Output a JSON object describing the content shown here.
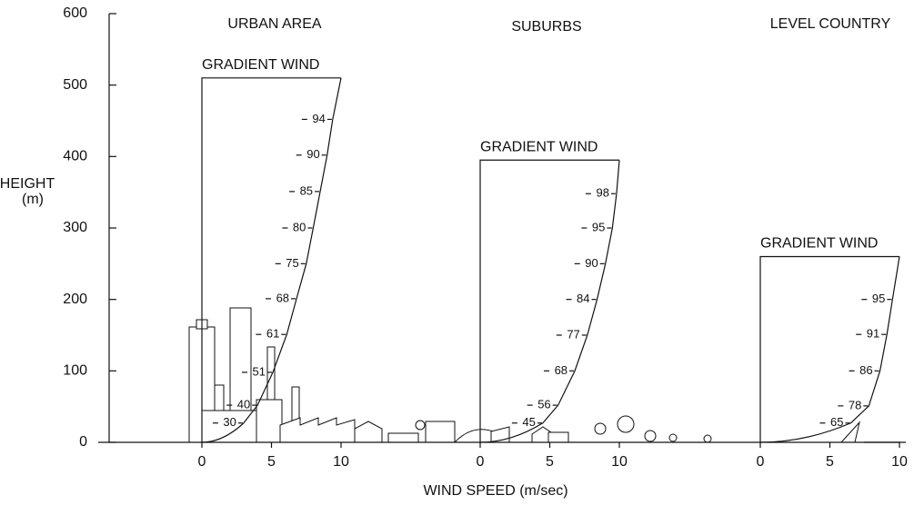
{
  "chart_data": {
    "type": "wind-profile",
    "ylabel": [
      "HEIGHT",
      "(m)"
    ],
    "xlabel": "WIND SPEED  (m/sec)",
    "ylim": [
      0,
      600
    ],
    "yticks": [
      0,
      100,
      200,
      300,
      400,
      500,
      600
    ],
    "panels": [
      {
        "title": "URBAN AREA",
        "gradient_label": "GRADIENT WIND",
        "gradient_height": 510,
        "gradient_speed": 10,
        "xlim": [
          0,
          10
        ],
        "xticks": [
          0,
          5,
          10
        ],
        "heights": [
          27,
          52,
          98,
          151,
          201,
          250,
          300,
          351,
          402,
          452
        ],
        "values": [
          30,
          40,
          51,
          61,
          68,
          75,
          80,
          85,
          90,
          94
        ]
      },
      {
        "title": "SUBURBS",
        "gradient_label": "GRADIENT WIND",
        "gradient_height": 395,
        "gradient_speed": 10,
        "xlim": [
          0,
          10
        ],
        "xticks": [
          0,
          5,
          10
        ],
        "heights": [
          27,
          52,
          100,
          150,
          200,
          250,
          300,
          348
        ],
        "values": [
          45,
          56,
          68,
          77,
          84,
          90,
          95,
          98
        ]
      },
      {
        "title": "LEVEL COUNTRY",
        "gradient_label": "GRADIENT WIND",
        "gradient_height": 260,
        "gradient_speed": 10,
        "xlim": [
          0,
          10
        ],
        "xticks": [
          0,
          5,
          10
        ],
        "heights": [
          27,
          51,
          100,
          151,
          200
        ],
        "values": [
          65,
          78,
          86,
          91,
          95
        ]
      }
    ]
  }
}
